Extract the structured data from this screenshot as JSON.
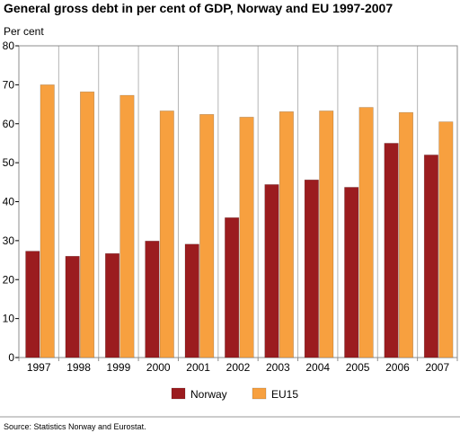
{
  "chart_data": {
    "type": "bar",
    "title": "General gross debt in per cent of GDP, Norway and EU 1997-2007",
    "ylabel": "Per cent",
    "xlabel": "",
    "categories": [
      "1997",
      "1998",
      "1999",
      "2000",
      "2001",
      "2002",
      "2003",
      "2004",
      "2005",
      "2006",
      "2007"
    ],
    "series": [
      {
        "name": "Norway",
        "color": "#9b1c1f",
        "values": [
          27.3,
          26.0,
          26.7,
          29.9,
          29.1,
          35.9,
          44.4,
          45.6,
          43.7,
          55.0,
          52.0
        ]
      },
      {
        "name": "EU15",
        "color": "#f7a03f",
        "values": [
          70.0,
          68.2,
          67.3,
          63.3,
          62.4,
          61.7,
          63.1,
          63.3,
          64.2,
          62.9,
          60.5
        ]
      }
    ],
    "ylim": [
      0,
      80
    ],
    "yticks": [
      0,
      10,
      20,
      30,
      40,
      50,
      60,
      70,
      80
    ],
    "grid": "vertical separators between categories",
    "legend": "bottom"
  },
  "footer": {
    "source": "Source: Statistics Norway and Eurostat."
  }
}
